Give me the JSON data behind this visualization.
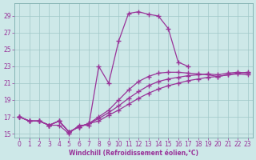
{
  "xlabel": "Windchill (Refroidissement éolien,°C)",
  "bg_color": "#cde8e8",
  "line_color": "#993399",
  "grid_color": "#a0c8c8",
  "hours": [
    0,
    1,
    2,
    3,
    4,
    5,
    6,
    7,
    8,
    9,
    10,
    11,
    12,
    13,
    14,
    15,
    16,
    17,
    18,
    19,
    20,
    21,
    22,
    23
  ],
  "line_main": [
    17,
    16.5,
    16.5,
    16,
    16,
    15,
    16,
    16,
    23,
    21,
    26,
    29.3,
    29.5,
    29.2,
    29.0,
    27.5,
    23.5,
    23.0,
    null,
    null,
    null,
    null,
    null,
    null
  ],
  "line_flat1": [
    17,
    16.5,
    16.5,
    16,
    16.5,
    15.2,
    15.8,
    16.2,
    16.5,
    17.2,
    17.8,
    18.5,
    19.2,
    19.8,
    20.3,
    20.7,
    21.0,
    21.3,
    21.5,
    21.7,
    21.8,
    22.0,
    22.2,
    22.3
  ],
  "line_flat2": [
    17,
    16.5,
    16.5,
    16,
    16.5,
    15.2,
    15.8,
    16.2,
    16.8,
    17.5,
    18.3,
    19.2,
    20.0,
    20.7,
    21.2,
    21.5,
    21.7,
    21.9,
    22.0,
    22.1,
    22.0,
    22.2,
    22.3,
    22.2
  ],
  "line_flat3": [
    17,
    16.5,
    16.5,
    16,
    16.5,
    15.2,
    15.8,
    16.2,
    17.0,
    17.8,
    19.0,
    20.2,
    21.2,
    21.8,
    22.2,
    22.3,
    22.3,
    22.2,
    22.1,
    22.0,
    21.8,
    22.0,
    22.1,
    22.0
  ],
  "xlim": [
    -0.5,
    23.5
  ],
  "ylim": [
    14.5,
    30.5
  ],
  "yticks": [
    15,
    17,
    19,
    21,
    23,
    25,
    27,
    29
  ],
  "xticks": [
    0,
    1,
    2,
    3,
    4,
    5,
    6,
    7,
    8,
    9,
    10,
    11,
    12,
    13,
    14,
    15,
    16,
    17,
    18,
    19,
    20,
    21,
    22,
    23
  ],
  "tick_fontsize": 5.5,
  "xlabel_fontsize": 5.5
}
